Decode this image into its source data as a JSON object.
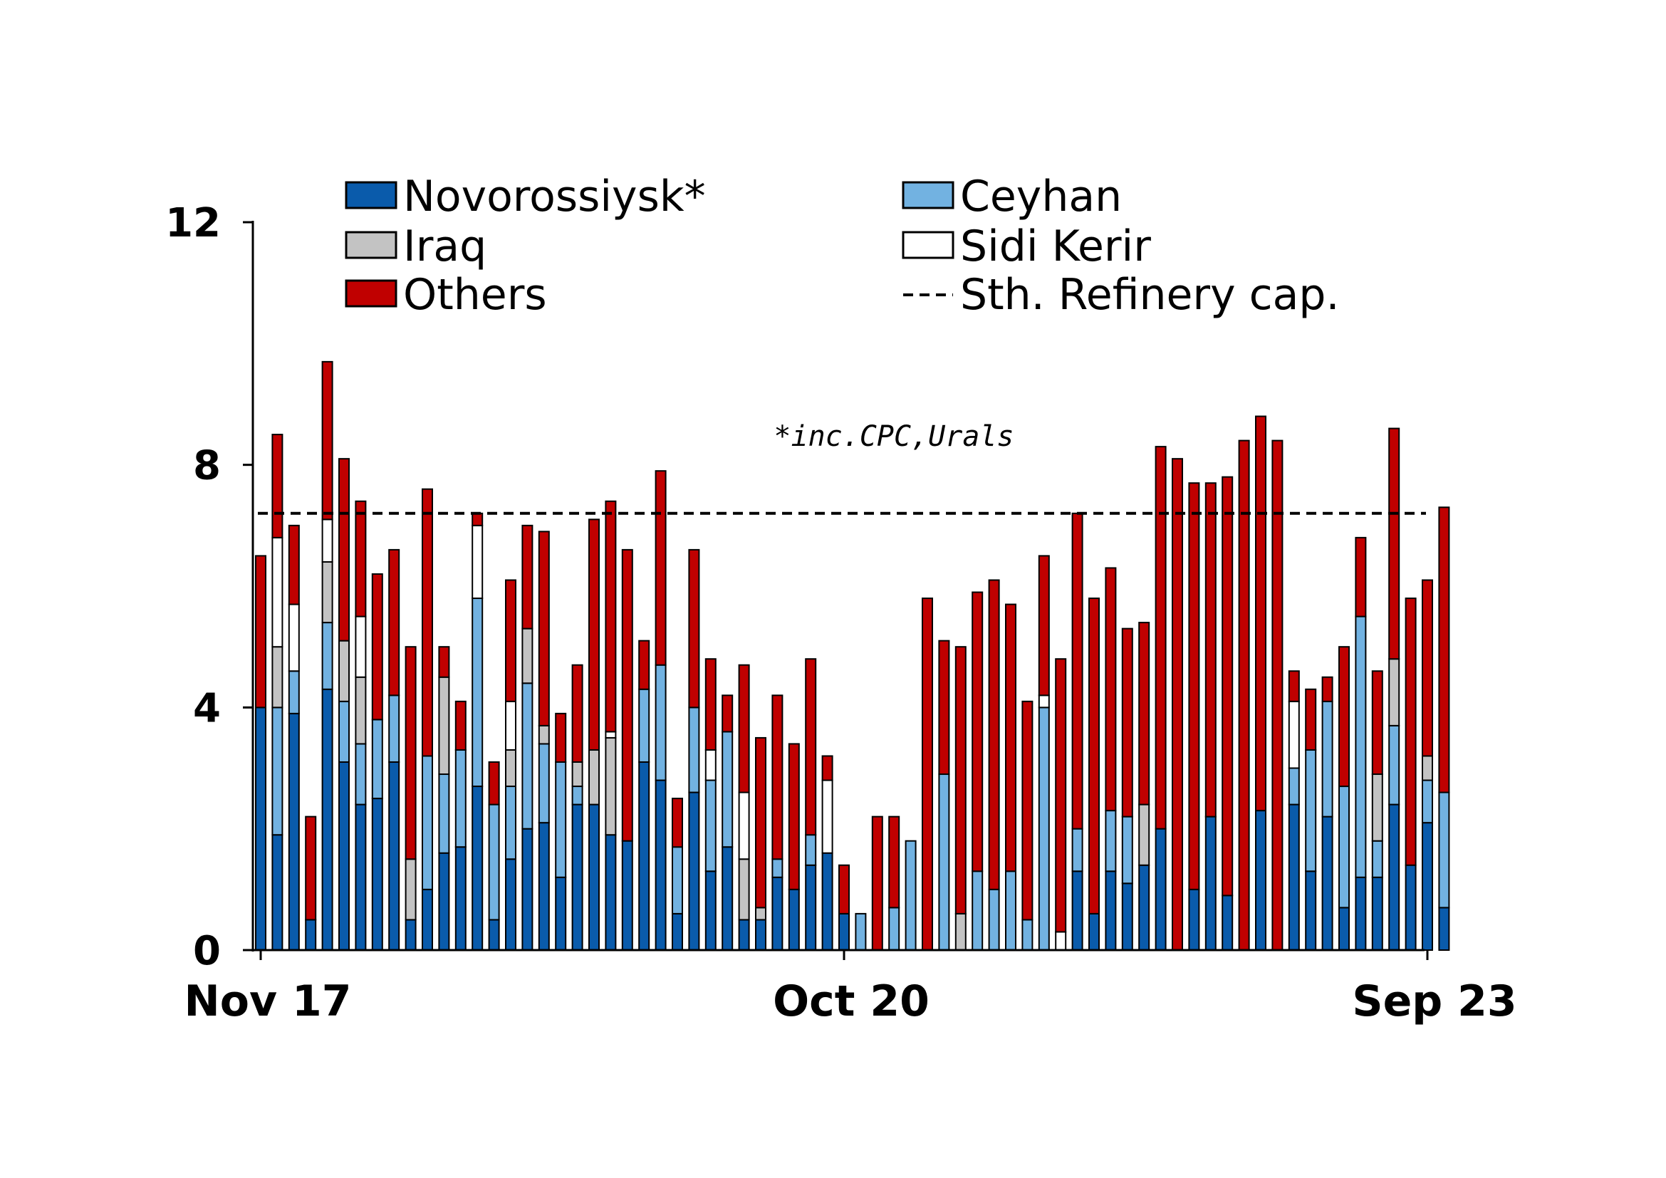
{
  "chart_data": {
    "type": "bar",
    "stacked": true,
    "title": "",
    "xlabel": "",
    "ylabel": "",
    "ylim": [
      0,
      12
    ],
    "yticks": [
      0,
      4,
      8,
      12
    ],
    "x_tick_labels": [
      {
        "label": "Nov 17",
        "index": 0
      },
      {
        "label": "Oct 20",
        "index": 35
      },
      {
        "label": "Sep 23",
        "index": 70
      }
    ],
    "annotation": "*inc.CPC,Urals",
    "reference_line": {
      "name": "Sth. Refinery cap.",
      "value": 7.2,
      "color": "#000000"
    },
    "legend_position": "top",
    "series": [
      {
        "name": "Novorossiysk*",
        "color": "#0a5bab",
        "values": [
          4.0,
          1.9,
          3.9,
          0.5,
          4.3,
          3.1,
          2.4,
          2.5,
          3.1,
          0.5,
          1.0,
          1.6,
          1.7,
          2.7,
          0.5,
          1.5,
          2.0,
          2.1,
          1.2,
          2.4,
          2.4,
          1.9,
          1.8,
          3.1,
          2.8,
          0.6,
          2.6,
          1.3,
          1.7,
          0.5,
          0.5,
          1.2,
          1.0,
          1.4,
          1.6,
          0.6,
          0,
          0,
          0,
          0,
          0,
          0,
          0,
          0,
          0,
          0,
          0,
          0,
          0,
          1.3,
          0.6,
          1.3,
          1.1,
          1.4,
          2.0,
          0,
          1.0,
          2.2,
          0.9,
          0,
          2.3,
          0,
          2.4,
          1.3,
          2.2,
          0.7,
          1.2,
          1.2,
          2.4,
          1.4,
          2.1,
          0.7
        ]
      },
      {
        "name": "Ceyhan",
        "color": "#72b2e1",
        "values": [
          0,
          2.1,
          0.7,
          0,
          1.1,
          1.0,
          1.0,
          1.3,
          1.1,
          0,
          2.2,
          1.3,
          1.6,
          3.1,
          1.9,
          1.2,
          2.4,
          1.3,
          1.9,
          0.3,
          0,
          0,
          0,
          1.2,
          1.9,
          1.1,
          1.4,
          1.5,
          1.9,
          0,
          0,
          0.3,
          0,
          0.5,
          0,
          0,
          0.6,
          0,
          0.7,
          1.8,
          0,
          2.9,
          0,
          1.3,
          1.0,
          1.3,
          0.5,
          4.0,
          0,
          0.7,
          0,
          1.0,
          1.1,
          0,
          0,
          0,
          0,
          0,
          0,
          0,
          0,
          0,
          0.6,
          2.0,
          1.9,
          2.0,
          4.3,
          0.6,
          1.3,
          0,
          0.7,
          1.9
        ]
      },
      {
        "name": "Iraq",
        "color": "#c3c3c3",
        "values": [
          0,
          1.0,
          0,
          0,
          1.0,
          1.0,
          1.1,
          0,
          0,
          1.0,
          0,
          1.6,
          0,
          0,
          0,
          0.6,
          0.9,
          0.3,
          0,
          0.4,
          0.9,
          1.6,
          0,
          0,
          0,
          0,
          0,
          0,
          0,
          1.0,
          0.2,
          0,
          0,
          0,
          0,
          0,
          0,
          0,
          0,
          0,
          0,
          0,
          0.6,
          0,
          0,
          0,
          0,
          0,
          0,
          0,
          0,
          0,
          0,
          1.0,
          0,
          0,
          0,
          0,
          0,
          0,
          0,
          0,
          0,
          0,
          0,
          0,
          0,
          1.1,
          1.1,
          0,
          0.4,
          0
        ]
      },
      {
        "name": "Sidi Kerir",
        "color": "#ffffff",
        "values": [
          0,
          1.8,
          1.1,
          0,
          0.7,
          0,
          1.0,
          0,
          0,
          0,
          0,
          0,
          0,
          1.2,
          0,
          0.8,
          0,
          0,
          0,
          0,
          0,
          0.1,
          0,
          0,
          0,
          0,
          0,
          0.5,
          0,
          1.1,
          0,
          0,
          0,
          0,
          1.2,
          0,
          0,
          0,
          0,
          0,
          0,
          0,
          0,
          0,
          0,
          0,
          0,
          0.2,
          0.3,
          0,
          0,
          0,
          0,
          0,
          0,
          0,
          0,
          0,
          0,
          0,
          0,
          0,
          1.1,
          0,
          0,
          0,
          0,
          0,
          0,
          0,
          0,
          0
        ]
      },
      {
        "name": "Others",
        "color": "#c00000",
        "values": [
          2.5,
          1.7,
          1.3,
          1.7,
          2.6,
          3.0,
          1.9,
          2.4,
          2.4,
          3.5,
          4.4,
          0.5,
          0.8,
          0.2,
          0.7,
          2.0,
          1.7,
          3.2,
          0.8,
          1.6,
          3.8,
          3.8,
          4.8,
          0.8,
          3.2,
          0.8,
          2.6,
          1.5,
          0.6,
          2.1,
          2.8,
          2.7,
          2.4,
          2.9,
          0.4,
          0.8,
          0,
          2.2,
          1.5,
          0,
          5.8,
          2.2,
          4.4,
          4.6,
          5.1,
          4.4,
          3.6,
          2.3,
          4.5,
          5.2,
          5.2,
          4.0,
          3.1,
          3.0,
          6.3,
          8.1,
          6.7,
          5.5,
          6.9,
          8.4,
          6.5,
          8.4,
          0.5,
          1.0,
          0.4,
          2.3,
          1.3,
          1.7,
          3.8,
          4.4,
          2.9,
          4.7
        ]
      }
    ]
  }
}
